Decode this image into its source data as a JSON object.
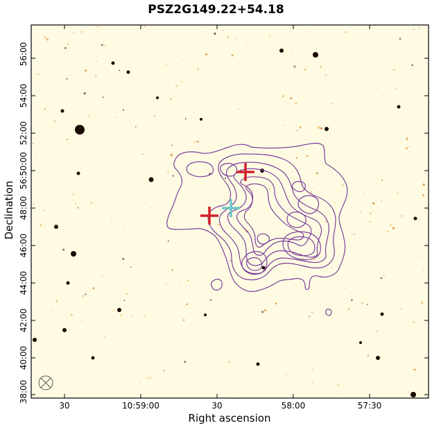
{
  "title": "PSZ2G149.22+54.18",
  "xlabel": "Right ascension",
  "ylabel": "Declination",
  "x_ticks": [
    "30",
    "10:59:00",
    "30",
    "58:00",
    "57:30"
  ],
  "y_ticks": [
    "38:00",
    "40:00",
    "42:00",
    "44:00",
    "46:00",
    "48:00",
    "56:50:00",
    "52:00",
    "54:00",
    "56:00"
  ],
  "colors": {
    "background": "#fffbe3",
    "contour": "#7b3f9a",
    "marker_red": "#d0202a",
    "marker_cyan": "#6ec6c8",
    "star": "#1a0a00"
  },
  "markers": [
    {
      "color": "red",
      "label": "marker-red-1"
    },
    {
      "color": "red",
      "label": "marker-red-2"
    },
    {
      "color": "cyan",
      "label": "marker-cyan"
    }
  ]
}
